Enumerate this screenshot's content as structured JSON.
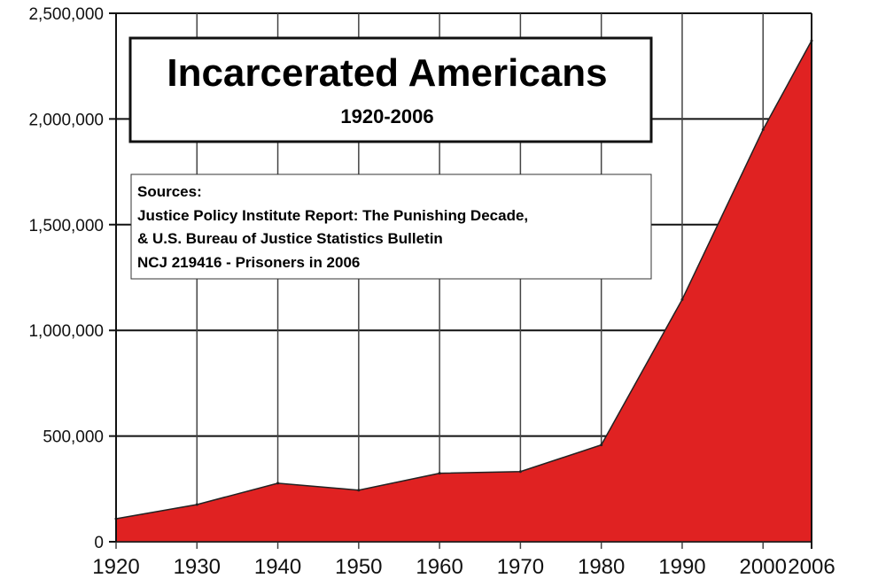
{
  "chart_data": {
    "type": "area",
    "title": "Incarcerated Americans",
    "subtitle": "1920-2006",
    "sources_box": {
      "heading": "Sources:",
      "lines": [
        "Justice Policy Institute Report: The Punishing Decade,",
        "& U.S. Bureau of Justice Statistics Bulletin",
        "NCJ 219416 - Prisoners in 2006"
      ]
    },
    "xlabel": "",
    "ylabel": "",
    "x": [
      1920,
      1930,
      1940,
      1950,
      1960,
      1970,
      1980,
      1990,
      2000,
      2006
    ],
    "values": [
      109000,
      176000,
      277000,
      244000,
      324000,
      332000,
      458000,
      1146000,
      1950000,
      2370000
    ],
    "xlim": [
      1920,
      2006
    ],
    "ylim": [
      0,
      2500000
    ],
    "x_ticks": [
      "1920",
      "1930",
      "1940",
      "1950",
      "1960",
      "1970",
      "1980",
      "1990",
      "2000",
      "2006"
    ],
    "y_ticks": [
      {
        "value": 0,
        "label": "0"
      },
      {
        "value": 500000,
        "label": "500,000"
      },
      {
        "value": 1000000,
        "label": "1,000,000"
      },
      {
        "value": 1500000,
        "label": "1,500,000"
      },
      {
        "value": 2000000,
        "label": "2,000,000"
      },
      {
        "value": 2500000,
        "label": "2,500,000"
      }
    ],
    "grid": true,
    "legend": "none",
    "fill_color": "#e02222",
    "line_color": "#222222"
  }
}
